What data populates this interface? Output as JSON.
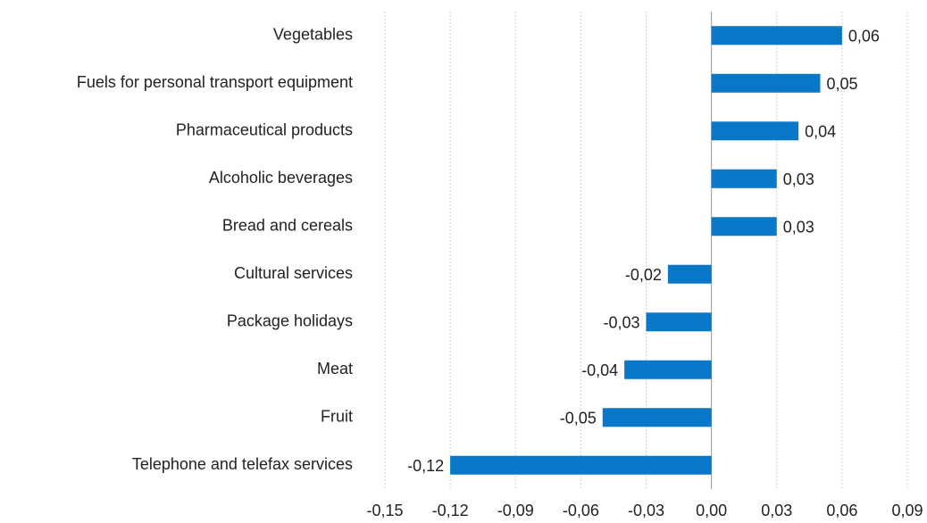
{
  "chart_data": {
    "type": "hbar",
    "categories": [
      "Vegetables",
      "Fuels for personal transport equipment",
      "Pharmaceutical products",
      "Alcoholic beverages",
      "Bread and cereals",
      "Cultural services",
      "Package holidays",
      "Meat",
      "Fruit",
      "Telephone and telefax services"
    ],
    "values": [
      0.06,
      0.05,
      0.04,
      0.03,
      0.03,
      -0.02,
      -0.03,
      -0.04,
      -0.05,
      -0.12
    ],
    "value_labels": [
      "0,06",
      "0,05",
      "0,04",
      "0,03",
      "0,03",
      "-0,02",
      "-0,03",
      "-0,04",
      "-0,05",
      "-0,12"
    ],
    "color": "#0a78c8",
    "xlim": [
      -0.15,
      0.09
    ],
    "xticks": [
      {
        "value": -0.15,
        "label": "-0,15"
      },
      {
        "value": -0.12,
        "label": "-0,12"
      },
      {
        "value": -0.09,
        "label": "-0,09"
      },
      {
        "value": -0.06,
        "label": "-0,06"
      },
      {
        "value": -0.03,
        "label": "-0,03"
      },
      {
        "value": 0,
        "label": "0,00"
      },
      {
        "value": 0.03,
        "label": "0,03"
      },
      {
        "value": 0.06,
        "label": "0,06"
      },
      {
        "value": 0.09,
        "label": "0,09"
      }
    ],
    "grid": true
  }
}
